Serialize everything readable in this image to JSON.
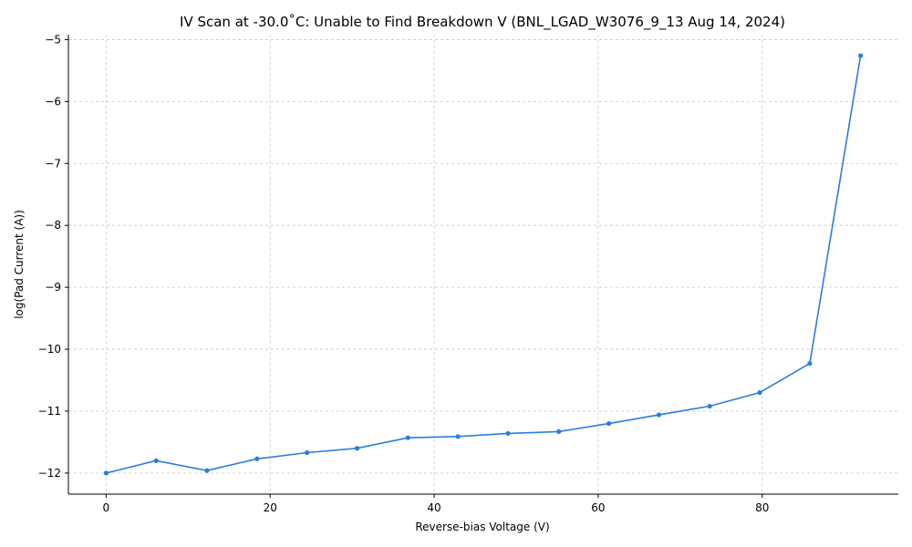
{
  "chart_data": {
    "type": "line",
    "title": "IV Scan at -30.0˚C: Unable to Find Breakdown V (BNL_LGAD_W3076_9_13 Aug 14, 2024)",
    "xlabel": "Reverse-bias Voltage (V)",
    "ylabel": "log(Pad Current (A))",
    "xlim": [
      -4.6,
      96.6
    ],
    "ylim": [
      -12.34,
      -4.92
    ],
    "xticks": [
      0,
      20,
      40,
      60,
      80
    ],
    "yticks": [
      -12,
      -11,
      -10,
      -9,
      -8,
      -7,
      -6,
      -5
    ],
    "grid": true,
    "series": [
      {
        "color": "#2a7de1",
        "marker": "circle",
        "x": [
          0,
          6.1,
          12.3,
          18.4,
          24.5,
          30.6,
          36.8,
          42.9,
          49.0,
          55.2,
          61.3,
          67.4,
          73.6,
          79.7,
          85.8,
          92.0
        ],
        "y": [
          -12.0,
          -11.8,
          -11.96,
          -11.77,
          -11.67,
          -11.6,
          -11.43,
          -11.41,
          -11.36,
          -11.33,
          -11.2,
          -11.06,
          -10.92,
          -10.7,
          -10.23,
          -5.26
        ]
      }
    ]
  }
}
